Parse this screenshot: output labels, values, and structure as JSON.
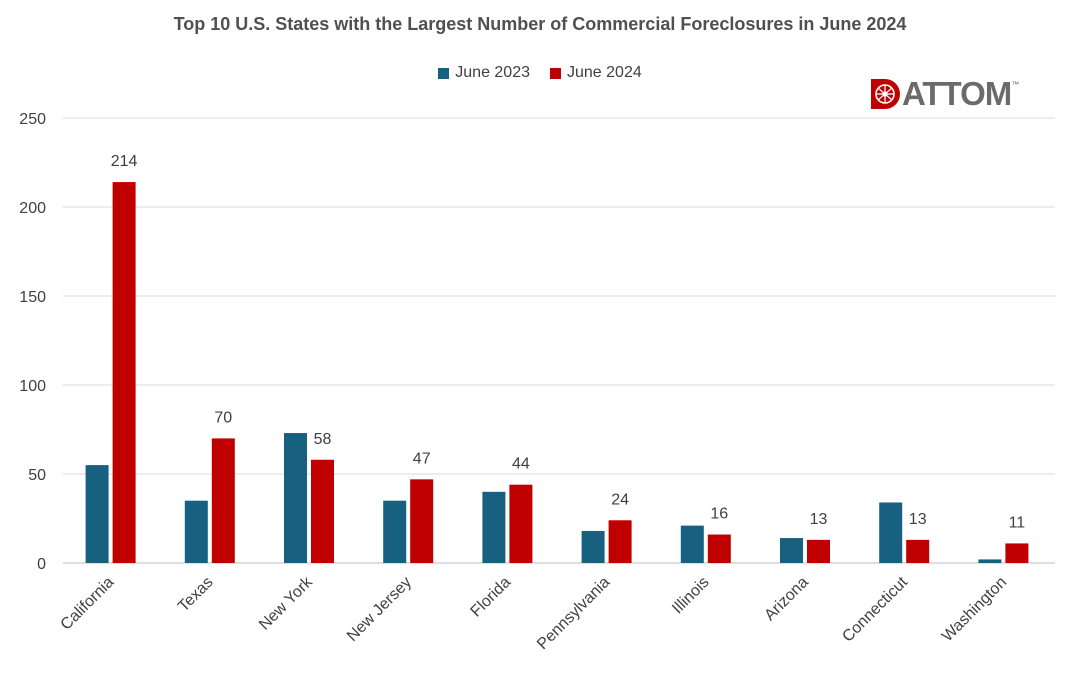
{
  "chart_data": {
    "type": "bar",
    "title": "Top 10 U.S. States with the Largest Number of Commercial Foreclosures in June 2024",
    "categories": [
      "California",
      "Texas",
      "New York",
      "New Jersey",
      "Florida",
      "Pennsylvania",
      "Illinois",
      "Arizona",
      "Connecticut",
      "Washington"
    ],
    "series": [
      {
        "name": "June 2023",
        "color": "#17607f",
        "values": [
          55,
          35,
          73,
          35,
          40,
          18,
          21,
          14,
          34,
          2
        ]
      },
      {
        "name": "June 2024",
        "color": "#c00000",
        "values": [
          214,
          70,
          58,
          47,
          44,
          24,
          16,
          13,
          13,
          11
        ]
      }
    ],
    "data_labels_series": "June 2024",
    "ylim": [
      0,
      250
    ],
    "yticks": [
      0,
      50,
      100,
      150,
      200,
      250
    ],
    "xlabel": "",
    "ylabel": "",
    "grid": true,
    "legend_position": "top"
  },
  "logo": {
    "text": "ATTOM",
    "tm": "™",
    "color": "#c00000"
  }
}
